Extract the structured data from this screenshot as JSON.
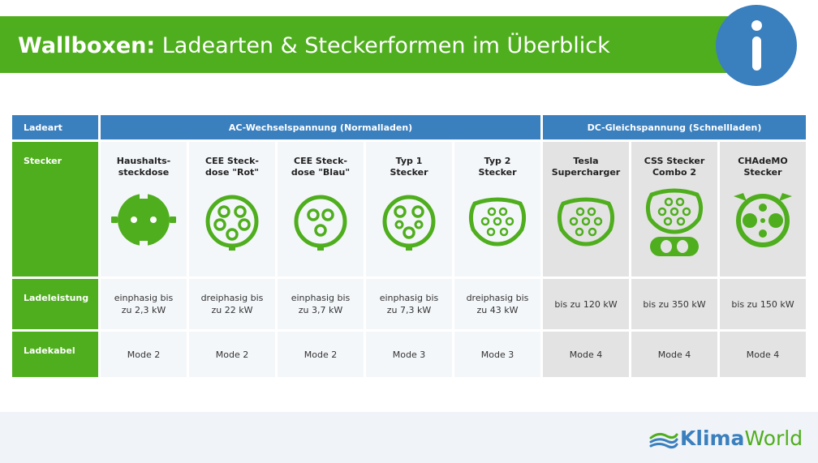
{
  "header": {
    "title_bold": "Wallboxen:",
    "title_rest": " Ladearten & Steckerformen im Überblick",
    "info_icon": "info-icon"
  },
  "table": {
    "header": {
      "label": "Ladeart",
      "ac_group": "AC-Wechselspannung (Normalladen)",
      "dc_group": "DC-Gleichspannung (Schnellladen)"
    },
    "row_labels": {
      "stecker": "Stecker",
      "ladeleistung": "Ladeleistung",
      "ladekabel": "Ladekabel"
    },
    "columns": [
      {
        "name": "Haushalts-\nsteckdose",
        "icon": "schuko-socket-icon",
        "power": "einphasig bis\nzu 2,3 kW",
        "cable": "Mode 2",
        "group": "ac"
      },
      {
        "name": "CEE Steck-\ndose \"Rot\"",
        "icon": "cee-red-socket-icon",
        "power": "dreiphasig bis\nzu 22 kW",
        "cable": "Mode 2",
        "group": "ac"
      },
      {
        "name": "CEE Steck-\ndose \"Blau\"",
        "icon": "cee-blue-socket-icon",
        "power": "einphasig bis\nzu 3,7 kW",
        "cable": "Mode 2",
        "group": "ac"
      },
      {
        "name": "Typ 1\nStecker",
        "icon": "type1-plug-icon",
        "power": "einphasig bis\nzu 7,3 kW",
        "cable": "Mode 3",
        "group": "ac"
      },
      {
        "name": "Typ 2\nStecker",
        "icon": "type2-plug-icon",
        "power": "dreiphasig bis\nzu 43 kW",
        "cable": "Mode 3",
        "group": "ac"
      },
      {
        "name": "Tesla\nSupercharger",
        "icon": "tesla-supercharger-icon",
        "power": "bis zu 120 kW",
        "cable": "Mode 4",
        "group": "dc"
      },
      {
        "name": "CSS Stecker\nCombo 2",
        "icon": "ccs-combo2-plug-icon",
        "power": "bis zu 350 kW",
        "cable": "Mode 4",
        "group": "dc"
      },
      {
        "name": "CHAdeMO\nStecker",
        "icon": "chademo-plug-icon",
        "power": "bis zu 150 kW",
        "cable": "Mode 4",
        "group": "dc"
      }
    ]
  },
  "footer": {
    "logo_part1": "Klima",
    "logo_part2": "World",
    "logo_icon": "klimaworld-logo-icon"
  },
  "colors": {
    "green": "#4fae1d",
    "blue": "#3a7fbe",
    "ac_bg": "#f4f7fa",
    "dc_bg": "#e3e3e3"
  }
}
